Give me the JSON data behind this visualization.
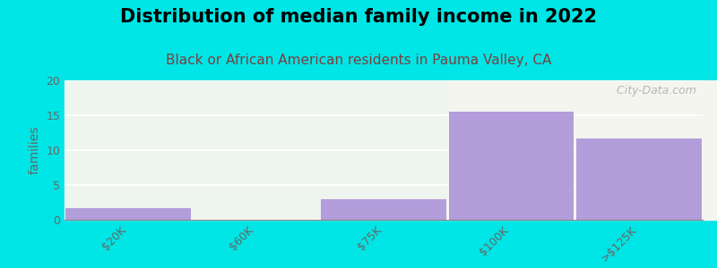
{
  "title": "Distribution of median family income in 2022",
  "subtitle": "Black or African American residents in Pauma Valley, CA",
  "categories": [
    "$20K",
    "$60K",
    "$75K",
    "$100K",
    ">$125K"
  ],
  "values": [
    1.7,
    0,
    3.0,
    15.5,
    11.7
  ],
  "bar_color": "#b39ddb",
  "bg_color": "#00e5e5",
  "plot_bg_color_left": "#eef4ee",
  "plot_bg_color_right": "#f5f5f0",
  "ylabel": "families",
  "ylim": [
    0,
    20
  ],
  "yticks": [
    0,
    5,
    10,
    15,
    20
  ],
  "title_fontsize": 15,
  "subtitle_fontsize": 11,
  "subtitle_color": "#7a4040",
  "watermark": "  City-Data.com",
  "tick_color": "#666666"
}
